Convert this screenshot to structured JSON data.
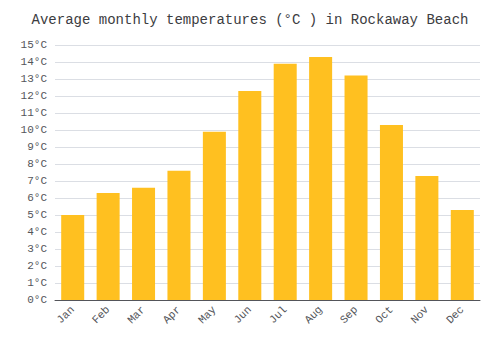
{
  "chart_data": {
    "type": "bar",
    "title": "Average monthly temperatures (°C ) in Rockaway Beach",
    "categories": [
      "Jan",
      "Feb",
      "Mar",
      "Apr",
      "May",
      "Jun",
      "Jul",
      "Aug",
      "Sep",
      "Oct",
      "Nov",
      "Dec"
    ],
    "values": [
      5.0,
      6.3,
      6.6,
      7.6,
      9.9,
      12.3,
      13.9,
      14.3,
      13.2,
      10.3,
      7.3,
      5.3
    ],
    "color": "#FFC020",
    "ylim": [
      0,
      15
    ],
    "yticks": [
      {
        "value": 0,
        "label": "0°C"
      },
      {
        "value": 1,
        "label": "1°C"
      },
      {
        "value": 2,
        "label": "2°C"
      },
      {
        "value": 3,
        "label": "3°C"
      },
      {
        "value": 4,
        "label": "4°C"
      },
      {
        "value": 5,
        "label": "5°C"
      },
      {
        "value": 6,
        "label": "6°C"
      },
      {
        "value": 7,
        "label": "7°C"
      },
      {
        "value": 8,
        "label": "8°C"
      },
      {
        "value": 9,
        "label": "9°C"
      },
      {
        "value": 10,
        "label": "10°C"
      },
      {
        "value": 11,
        "label": "11°C"
      },
      {
        "value": 12,
        "label": "12°C"
      },
      {
        "value": 13,
        "label": "13°C"
      },
      {
        "value": 14,
        "label": "14°C"
      },
      {
        "value": 15,
        "label": "15°C"
      }
    ],
    "grid": true
  }
}
